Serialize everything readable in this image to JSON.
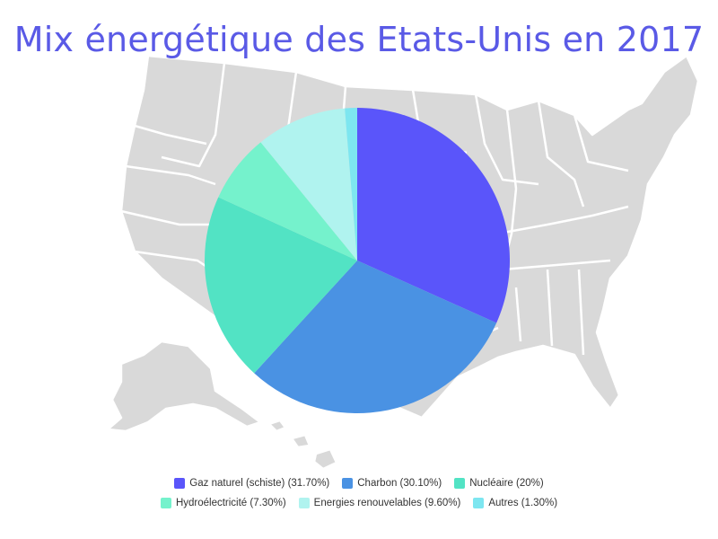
{
  "chart_data": {
    "type": "pie",
    "title": "Mix énergétique des Etats-Unis en 2017",
    "background": "us-map-silhouette",
    "slices": [
      {
        "label": "Gaz naturel (schiste)",
        "value": 31.7,
        "legend": "Gaz naturel (schiste) (31.70%)",
        "color": "#5a55fa"
      },
      {
        "label": "Charbon",
        "value": 30.1,
        "legend": "Charbon (30.10%)",
        "color": "#4a92e3"
      },
      {
        "label": "Nucléaire",
        "value": 20,
        "legend": "Nucléaire (20%)",
        "color": "#52e3c4"
      },
      {
        "label": "Hydroélectricité",
        "value": 7.3,
        "legend": "Hydroélectricité (7.30%)",
        "color": "#75f2cc"
      },
      {
        "label": "Energies renouvelables",
        "value": 9.6,
        "legend": "Energies renouvelables (9.60%)",
        "color": "#b0f3ef"
      },
      {
        "label": "Autres",
        "value": 1.3,
        "legend": "Autres (1.30%)",
        "color": "#7de6f0"
      }
    ],
    "legend_position": "bottom"
  }
}
